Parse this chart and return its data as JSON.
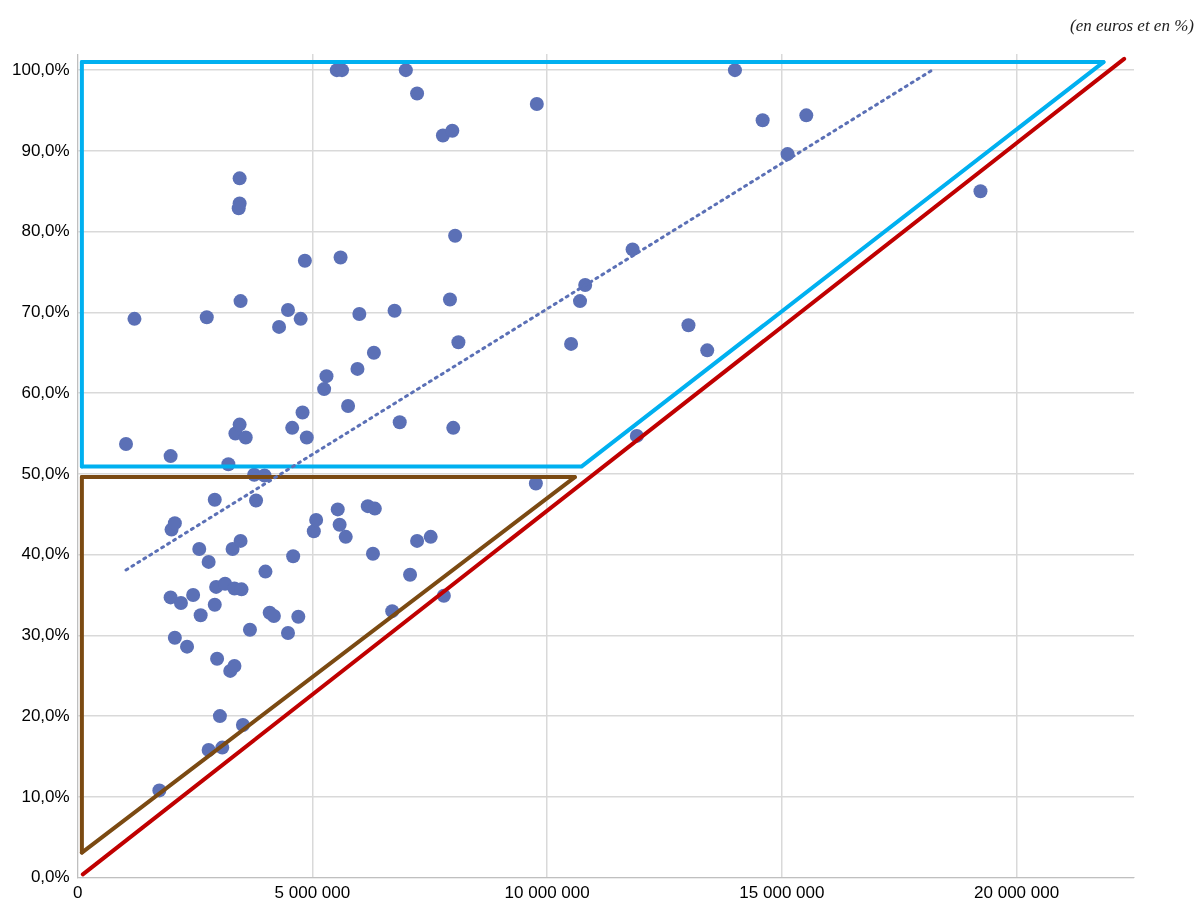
{
  "chart_data": {
    "type": "scatter",
    "annotations": [
      "(en euros et en %)"
    ],
    "xlim": [
      0,
      22500000
    ],
    "ylim": [
      0,
      102
    ],
    "xticks": [
      {
        "value": 0,
        "label": "0"
      },
      {
        "value": 5000000,
        "label": "5 000 000"
      },
      {
        "value": 10000000,
        "label": "10 000 000"
      },
      {
        "value": 15000000,
        "label": "15 000 000"
      },
      {
        "value": 20000000,
        "label": "20 000 000"
      }
    ],
    "yticks": [
      {
        "value": 0,
        "label": "0,0%"
      },
      {
        "value": 10,
        "label": "10,0%"
      },
      {
        "value": 20,
        "label": "20,0%"
      },
      {
        "value": 30,
        "label": "30,0%"
      },
      {
        "value": 40,
        "label": "40,0%"
      },
      {
        "value": 50,
        "label": "50,0%"
      },
      {
        "value": 60,
        "label": "60,0%"
      },
      {
        "value": 70,
        "label": "70,0%"
      },
      {
        "value": 80,
        "label": "80,0%"
      },
      {
        "value": 90,
        "label": "90,0%"
      },
      {
        "value": 100,
        "label": "100,0%"
      }
    ],
    "grid": true,
    "legend": false,
    "marker": "circle",
    "series": [
      {
        "type": "scatter",
        "color": "#5b70b6",
        "x": [
          1030000,
          1210000,
          1980000,
          1740000,
          1980000,
          2000000,
          2070000,
          2070000,
          2200000,
          2330000,
          2460000,
          2590000,
          2620000,
          2750000,
          2790000,
          2790000,
          2920000,
          2920000,
          2950000,
          2970000,
          3030000,
          3080000,
          3140000,
          3210000,
          3250000,
          3300000,
          3340000,
          3340000,
          3360000,
          3450000,
          3450000,
          3430000,
          3450000,
          3470000,
          3470000,
          3490000,
          3520000,
          3580000,
          3670000,
          3760000,
          3800000,
          3980000,
          4000000,
          4090000,
          4180000,
          4290000,
          4480000,
          4480000,
          4570000,
          4590000,
          4700000,
          4750000,
          4790000,
          4840000,
          4880000,
          5030000,
          5080000,
          5250000,
          5300000,
          5520000,
          5630000,
          5540000,
          5580000,
          5600000,
          5710000,
          5760000,
          5960000,
          6000000,
          6180000,
          6290000,
          6310000,
          6330000,
          6700000,
          6750000,
          6860000,
          6990000,
          7080000,
          7230000,
          7230000,
          7520000,
          7780000,
          7800000,
          7930000,
          7980000,
          8000000,
          8040000,
          8110000,
          9760000,
          9780000,
          10510000,
          10700000,
          10810000,
          11820000,
          11910000,
          13010000,
          13410000,
          14000000,
          14590000,
          15120000,
          15520000,
          19230000
        ],
        "values": [
          53.7,
          69.2,
          52.2,
          10.8,
          34.7,
          43.1,
          43.9,
          29.7,
          34.0,
          28.6,
          35.0,
          40.7,
          32.5,
          69.4,
          39.1,
          15.8,
          46.8,
          33.8,
          36.0,
          27.1,
          20.0,
          16.1,
          36.4,
          51.2,
          25.6,
          40.7,
          26.2,
          35.8,
          55.0,
          86.6,
          83.5,
          82.9,
          56.1,
          71.4,
          41.7,
          35.7,
          18.9,
          54.5,
          30.7,
          49.9,
          46.7,
          49.8,
          37.9,
          32.8,
          32.4,
          68.2,
          70.3,
          30.3,
          55.7,
          39.8,
          32.3,
          69.2,
          57.6,
          76.4,
          54.5,
          42.9,
          44.3,
          60.5,
          62.1,
          100,
          100,
          45.6,
          43.7,
          76.8,
          42.2,
          58.4,
          63.0,
          69.8,
          46.0,
          40.1,
          65.0,
          45.7,
          33.0,
          70.2,
          56.4,
          100,
          37.5,
          97.1,
          41.7,
          42.2,
          91.9,
          34.9,
          71.6,
          92.5,
          55.7,
          79.5,
          66.3,
          48.8,
          95.8,
          66.1,
          71.4,
          73.4,
          77.8,
          54.7,
          68.4,
          65.3,
          100,
          93.8,
          89.6,
          94.4,
          85.0
        ]
      },
      {
        "type": "line",
        "color": "#5b70b6",
        "line_style": "dotted",
        "marker": "none",
        "x": [
          1030000,
          18200000
        ],
        "values": [
          38.1,
          100
        ]
      },
      {
        "type": "line",
        "color": "#c00000",
        "line_style": "solid",
        "marker": "none",
        "x": [
          110000,
          22290000
        ],
        "values": [
          0.4,
          101.4
        ]
      },
      {
        "type": "line",
        "color": "#00b0f0",
        "line_style": "solid",
        "marker": "none",
        "x": [
          90000,
          21850000
        ],
        "values": [
          101.0,
          101.0
        ]
      },
      {
        "type": "line",
        "color": "#00b0f0",
        "line_style": "solid",
        "marker": "none",
        "x": [
          90000,
          10730000,
          21850000
        ],
        "values": [
          50.9,
          50.9,
          101.0
        ]
      },
      {
        "type": "line",
        "color": "#00b0f0",
        "line_style": "solid",
        "marker": "none",
        "x": [
          90000,
          90000
        ],
        "values": [
          50.9,
          101.0
        ]
      },
      {
        "type": "line",
        "color": "#7b4a12",
        "line_style": "solid",
        "marker": "none",
        "x": [
          90000,
          10590000
        ],
        "values": [
          49.6,
          49.6
        ]
      },
      {
        "type": "line",
        "color": "#7b4a12",
        "line_style": "solid",
        "marker": "none",
        "x": [
          90000,
          10590000
        ],
        "values": [
          3.1,
          49.6
        ]
      },
      {
        "type": "line",
        "color": "#7b4a12",
        "line_style": "solid",
        "marker": "none",
        "x": [
          90000,
          90000
        ],
        "values": [
          3.1,
          49.6
        ]
      }
    ]
  }
}
